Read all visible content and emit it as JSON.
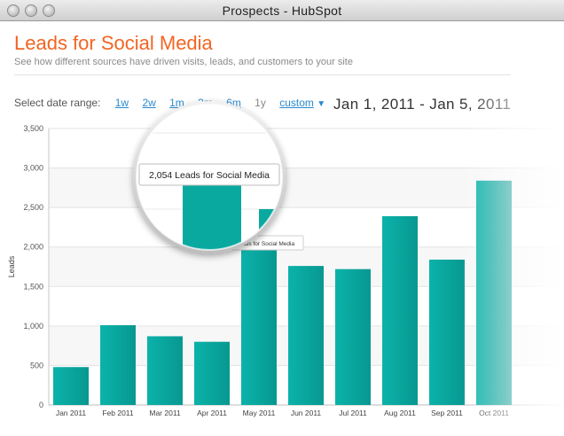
{
  "window": {
    "title": "Prospects - HubSpot"
  },
  "header": {
    "title": "Leads for Social Media",
    "subtitle": "See how different sources have driven visits, leads, and customers to your site"
  },
  "date_range": {
    "label": "Select date range:",
    "options": [
      "1w",
      "2w",
      "1m",
      "3m",
      "6m",
      "1y",
      "custom"
    ],
    "current": "1y",
    "display": "Jan 1, 2011 - Jan 5, 2011"
  },
  "tooltip": {
    "magnified": "2,054 Leads for Social Media",
    "small": "2,054 Leads for Social Media"
  },
  "colors": {
    "accent": "#f26522",
    "bar": "#0aa9a0",
    "link": "#2a8ad0"
  },
  "chart_data": {
    "type": "bar",
    "categories": [
      "Jan 2011",
      "Feb 2011",
      "Mar 2011",
      "Apr 2011",
      "May 2011",
      "Jun 2011",
      "Jul 2011",
      "Aug 2011",
      "Sep 2011",
      "Oct 2011"
    ],
    "values": [
      480,
      1010,
      870,
      800,
      2054,
      1760,
      1720,
      2390,
      1840,
      2840
    ],
    "ylabel": "Leads",
    "xlabel": "",
    "ylim": [
      0,
      3500
    ],
    "yticks": [
      "0",
      "500",
      "1,000",
      "1,500",
      "2,000",
      "2,500",
      "3,000",
      "3,500"
    ],
    "grid": true
  }
}
